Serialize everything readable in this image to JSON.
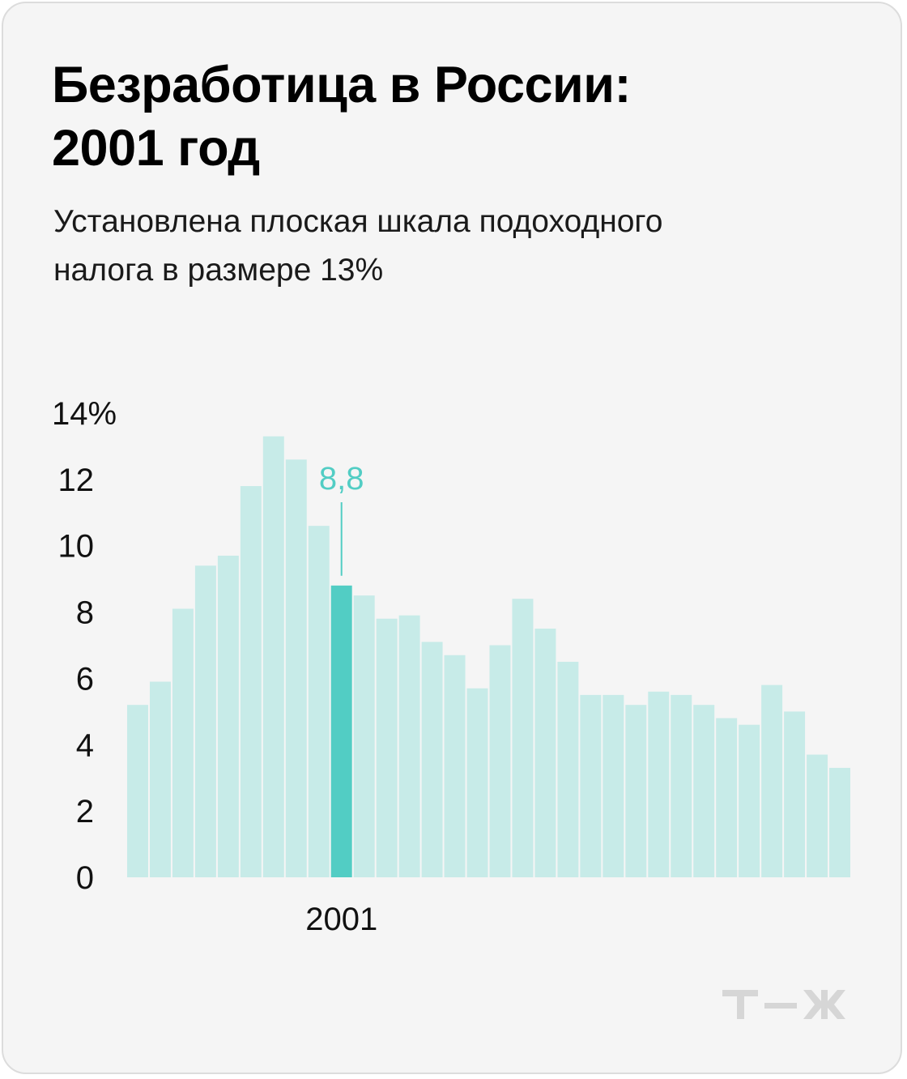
{
  "title": "Безработица в России:\n2001 год",
  "subtitle": "Установлена плоская шкала подоходного\nналога в размере 13%",
  "colors": {
    "bar": "#c7ebe8",
    "highlight": "#52cdc4",
    "annotation": "#52cdc4",
    "logo": "#d6d6d6"
  },
  "logo_icon": "tzh-logo-icon",
  "chart_data": {
    "type": "bar",
    "values": [
      5.2,
      5.9,
      8.1,
      9.4,
      9.7,
      11.8,
      13.3,
      12.6,
      10.6,
      8.8,
      8.5,
      7.8,
      7.9,
      7.1,
      6.7,
      5.7,
      7.0,
      8.4,
      7.5,
      6.5,
      5.5,
      5.5,
      5.2,
      5.6,
      5.5,
      5.2,
      4.8,
      4.6,
      5.8,
      5.0,
      3.7,
      3.3
    ],
    "highlight_index": 9,
    "x_tick_label": "2001",
    "annotation": "8,8",
    "yticks": [
      {
        "value": 0,
        "label": "0"
      },
      {
        "value": 2,
        "label": "2"
      },
      {
        "value": 4,
        "label": "4"
      },
      {
        "value": 6,
        "label": "6"
      },
      {
        "value": 8,
        "label": "8"
      },
      {
        "value": 10,
        "label": "10"
      },
      {
        "value": 12,
        "label": "12"
      },
      {
        "value": 14,
        "label": "14%"
      }
    ],
    "ylim": [
      0,
      14
    ],
    "grid": false
  }
}
